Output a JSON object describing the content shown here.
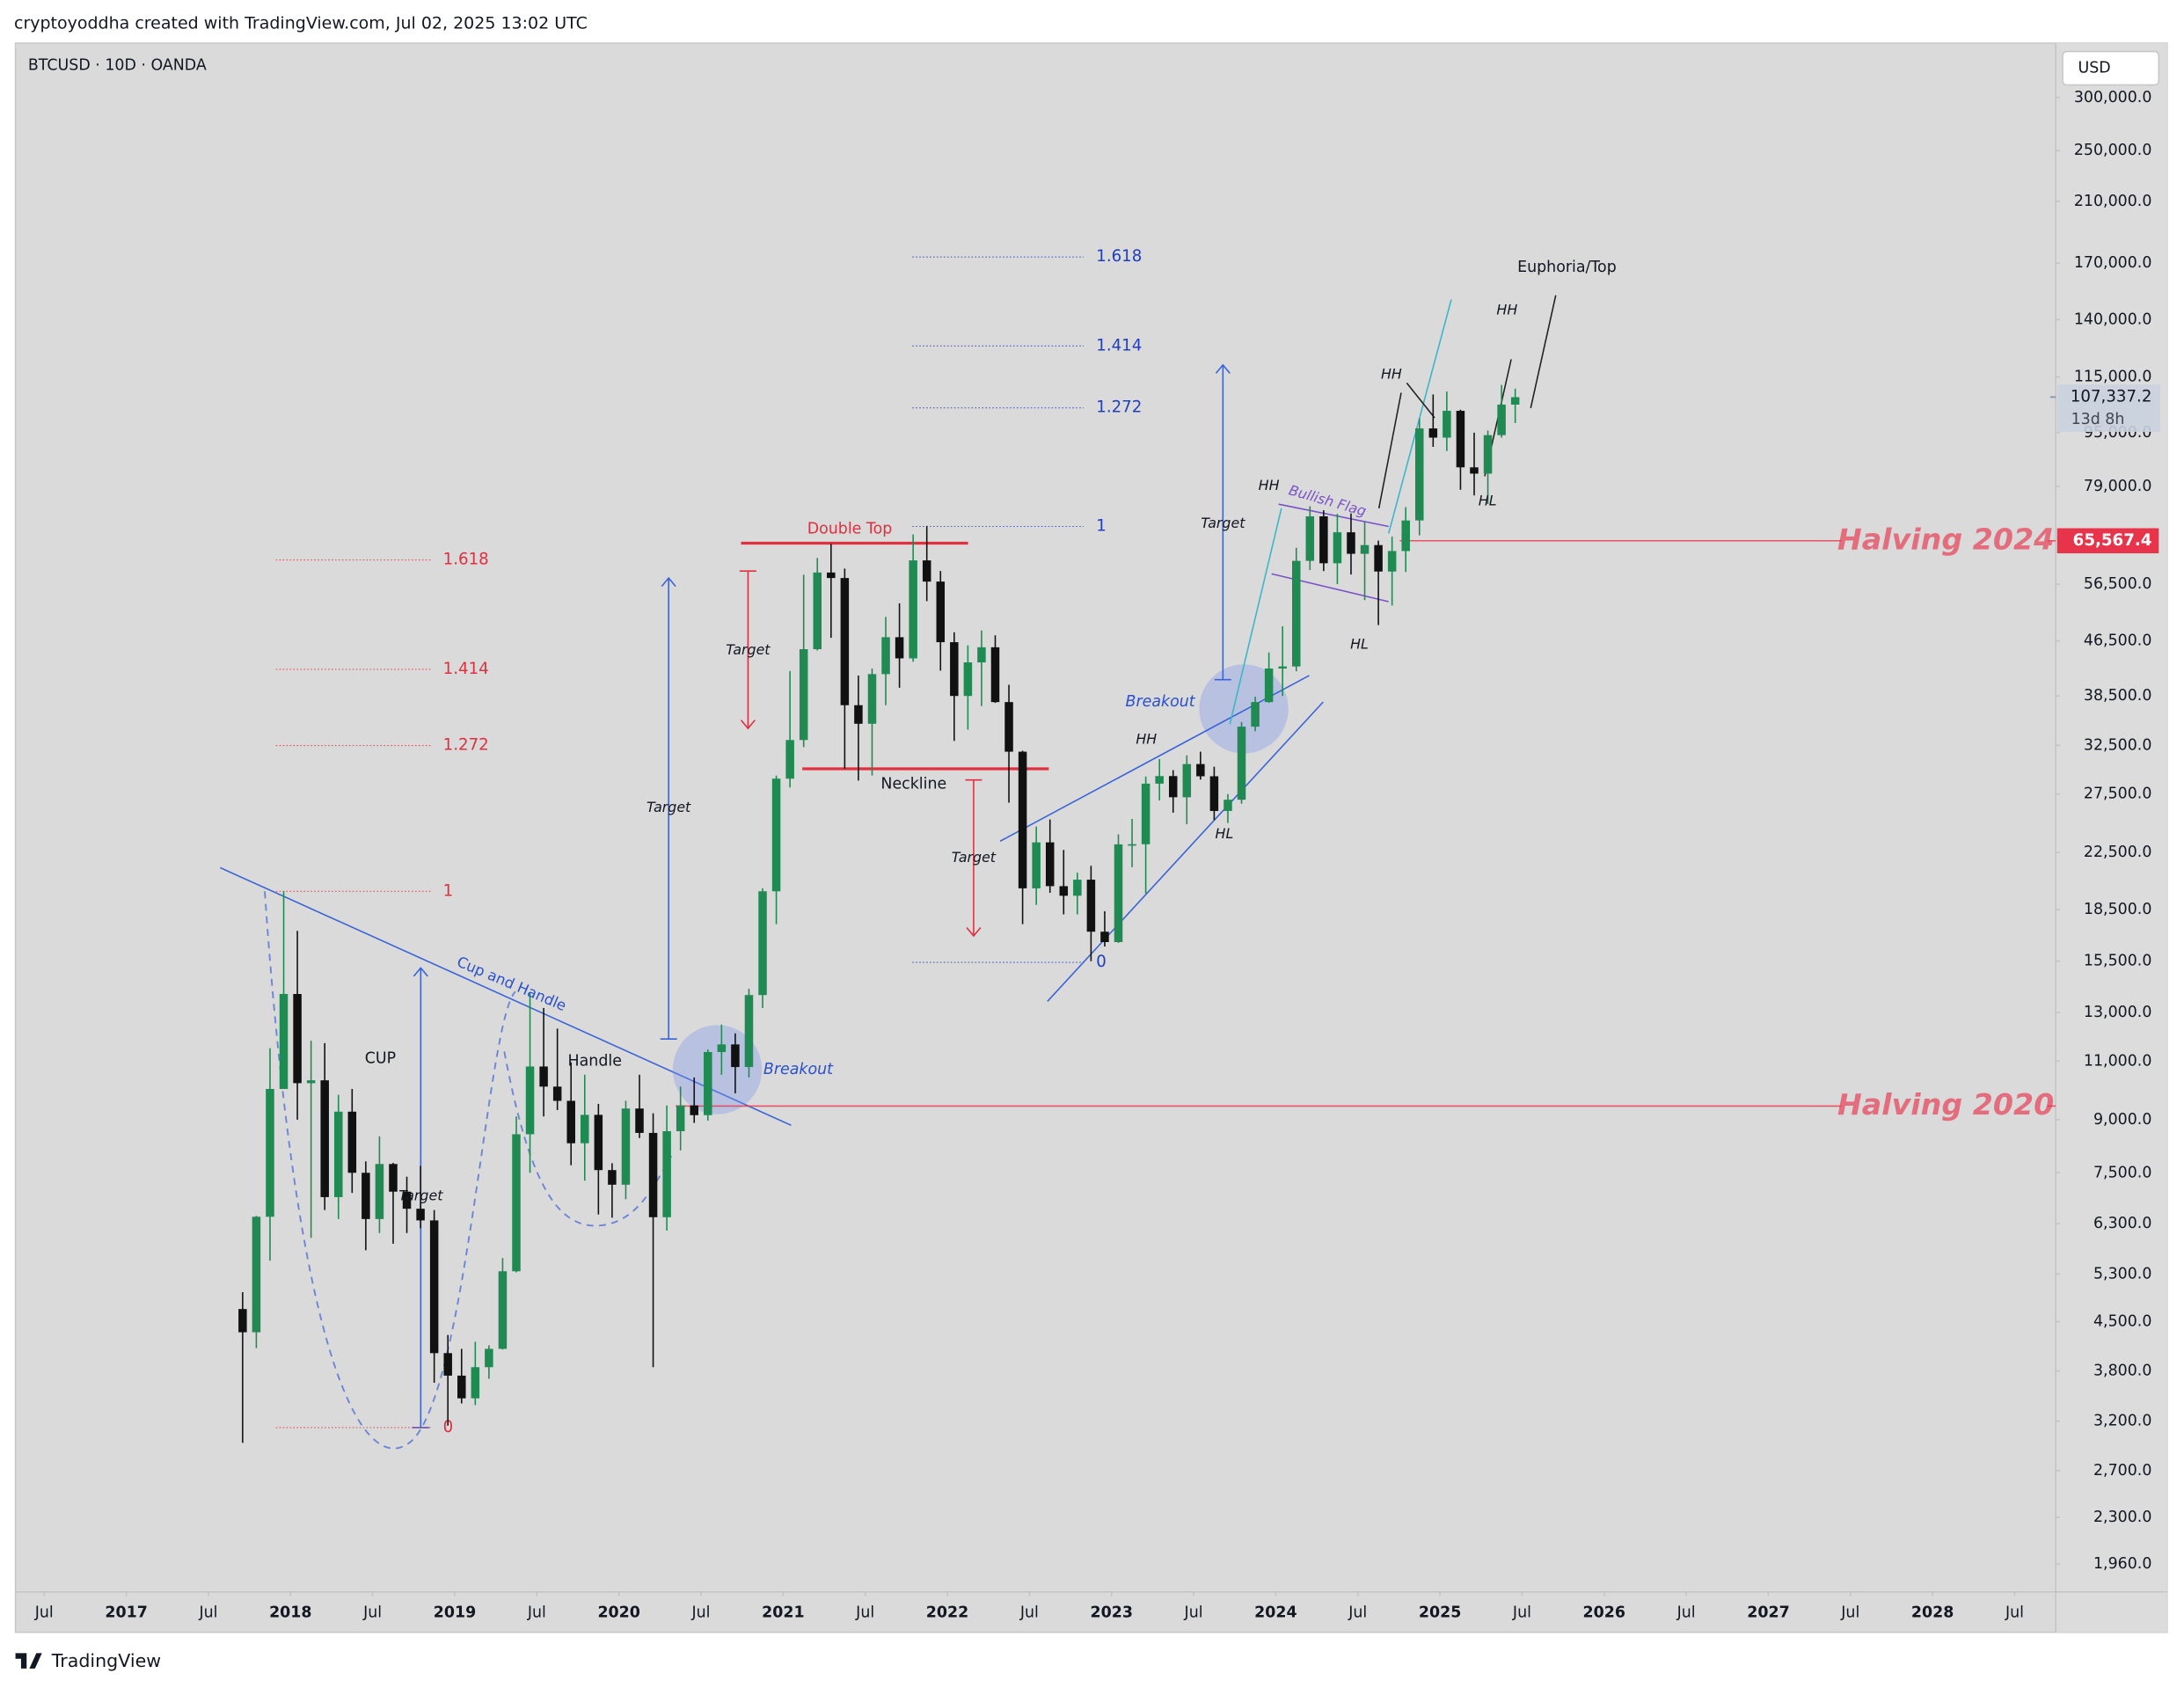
{
  "header": {
    "credit": "cryptoyoddha created with TradingView.com, Jul 02, 2025 13:02 UTC",
    "footer": "TradingView"
  },
  "chart_data": {
    "type": "candlestick",
    "title": "BTCUSD · 10D · OANDA",
    "currency": "USD",
    "log_scale": true,
    "grid": false,
    "up_color": "#1f8a52",
    "down_color": "#111111",
    "x": [
      "2017-09",
      "2017-10",
      "2017-11",
      "2017-12",
      "2018-01",
      "2018-02",
      "2018-03",
      "2018-04",
      "2018-05",
      "2018-06",
      "2018-07",
      "2018-08",
      "2018-09",
      "2018-10",
      "2018-11",
      "2018-12",
      "2019-01",
      "2019-02",
      "2019-03",
      "2019-04",
      "2019-05",
      "2019-06",
      "2019-07",
      "2019-08",
      "2019-09",
      "2019-10",
      "2019-11",
      "2019-12",
      "2020-01",
      "2020-02",
      "2020-03",
      "2020-04",
      "2020-05",
      "2020-06",
      "2020-07",
      "2020-08",
      "2020-09",
      "2020-10",
      "2020-11",
      "2020-12",
      "2021-01",
      "2021-02",
      "2021-03",
      "2021-04",
      "2021-05",
      "2021-06",
      "2021-07",
      "2021-08",
      "2021-09",
      "2021-10",
      "2021-11",
      "2021-12",
      "2022-01",
      "2022-02",
      "2022-03",
      "2022-04",
      "2022-05",
      "2022-06",
      "2022-07",
      "2022-08",
      "2022-09",
      "2022-10",
      "2022-11",
      "2022-12",
      "2023-01",
      "2023-02",
      "2023-03",
      "2023-04",
      "2023-05",
      "2023-06",
      "2023-07",
      "2023-08",
      "2023-09",
      "2023-10",
      "2023-11",
      "2023-12",
      "2024-01",
      "2024-02",
      "2024-03",
      "2024-04",
      "2024-05",
      "2024-06",
      "2024-07",
      "2024-08",
      "2024-09",
      "2024-10",
      "2024-11",
      "2024-12",
      "2025-01",
      "2025-02",
      "2025-03",
      "2025-04",
      "2025-05",
      "2025-06"
    ],
    "open": [
      4700,
      4340,
      6450,
      10000,
      13850,
      10200,
      10300,
      6900,
      9250,
      7500,
      6400,
      7730,
      7030,
      6630,
      6370,
      4040,
      3740,
      3460,
      3850,
      4100,
      5350,
      8560,
      10800,
      10080,
      9600,
      8300,
      9150,
      7570,
      7200,
      9350,
      8600,
      6440,
      8650,
      9450,
      9140,
      11350,
      11650,
      10780,
      13800,
      19700,
      28990,
      33100,
      45200,
      58800,
      57700,
      37300,
      35000,
      41500,
      47100,
      43800,
      61300,
      57000,
      46300,
      38500,
      43200,
      45500,
      37700,
      31800,
      19900,
      23300,
      20050,
      19400,
      20500,
      17150,
      16550,
      23140,
      23150,
      28500,
      29250,
      27200,
      30480,
      29230,
      25950,
      26970,
      34650,
      37700,
      42300,
      42600,
      61200,
      71300,
      60700,
      67500,
      62700,
      64600,
      59000,
      63300,
      70300,
      96400,
      93400,
      102400,
      84350,
      82550,
      94200,
      104600
    ],
    "high": [
      4980,
      6470,
      11500,
      19700,
      17200,
      11800,
      11700,
      9800,
      10000,
      7800,
      8500,
      7760,
      7400,
      7680,
      6600,
      4300,
      4100,
      4200,
      4150,
      5600,
      9100,
      13900,
      13200,
      12300,
      10950,
      10500,
      9500,
      7750,
      9600,
      10500,
      9200,
      9450,
      10080,
      10400,
      11450,
      12470,
      12100,
      14100,
      19900,
      29300,
      41950,
      58350,
      61800,
      64900,
      59600,
      41300,
      42300,
      50500,
      52900,
      67000,
      69000,
      59100,
      47900,
      45800,
      48200,
      47400,
      40000,
      31900,
      24600,
      25200,
      22700,
      21000,
      21500,
      18400,
      23950,
      25250,
      29200,
      31000,
      29850,
      31400,
      31800,
      30200,
      27500,
      35200,
      38400,
      44700,
      48900,
      64000,
      73800,
      72800,
      71900,
      72000,
      70000,
      65600,
      66500,
      73600,
      99800,
      108300,
      109400,
      102800,
      95000,
      95700,
      111900,
      110500
    ],
    "low": [
      2970,
      4110,
      5550,
      10900,
      9000,
      6000,
      6600,
      6400,
      7000,
      5750,
      6100,
      5880,
      6100,
      6200,
      3650,
      3150,
      3400,
      3380,
      3700,
      4090,
      5330,
      7500,
      9100,
      9300,
      7700,
      7300,
      6500,
      6430,
      6850,
      8450,
      3850,
      6150,
      8100,
      8900,
      8970,
      10500,
      9850,
      10400,
      13200,
      17600,
      28130,
      32300,
      45000,
      47000,
      30000,
      28800,
      29300,
      37300,
      39600,
      43300,
      53300,
      42000,
      33000,
      34300,
      37200,
      37600,
      26700,
      17600,
      18800,
      19600,
      18200,
      18200,
      15500,
      16300,
      16500,
      21400,
      19550,
      26900,
      25800,
      24800,
      28900,
      25150,
      24900,
      26600,
      34100,
      37600,
      38500,
      41900,
      59300,
      59100,
      56500,
      58400,
      53500,
      49100,
      52500,
      58900,
      66800,
      90500,
      89200,
      78100,
      76600,
      74400,
      93400,
      98200
    ],
    "close": [
      4340,
      6450,
      10000,
      13850,
      10200,
      10300,
      6900,
      9250,
      7500,
      6400,
      7730,
      7030,
      6630,
      6370,
      4040,
      3740,
      3460,
      3850,
      4100,
      5350,
      8560,
      10800,
      10080,
      9600,
      8300,
      9150,
      7570,
      7200,
      9350,
      8600,
      6440,
      8650,
      9450,
      9140,
      11350,
      11650,
      10780,
      13800,
      19700,
      28990,
      33100,
      45200,
      58800,
      57700,
      37300,
      35000,
      41500,
      47100,
      43800,
      61300,
      57000,
      46300,
      38500,
      43200,
      45500,
      37700,
      31800,
      19900,
      23300,
      20050,
      19400,
      20500,
      17150,
      16550,
      23140,
      23150,
      28500,
      29250,
      27200,
      30480,
      29230,
      25950,
      26970,
      34650,
      37700,
      42300,
      42600,
      61200,
      71300,
      60700,
      67500,
      62700,
      64600,
      59000,
      63300,
      70300,
      96400,
      93400,
      102400,
      84350,
      82550,
      94200,
      104600,
      107300
    ],
    "xlim": [
      "2016-05",
      "2028-10"
    ],
    "xticks": [
      {
        "value": "2016-07",
        "label": "Jul"
      },
      {
        "value": "2017-01",
        "label": "2017"
      },
      {
        "value": "2017-07",
        "label": "Jul"
      },
      {
        "value": "2018-01",
        "label": "2018"
      },
      {
        "value": "2018-07",
        "label": "Jul"
      },
      {
        "value": "2019-01",
        "label": "2019"
      },
      {
        "value": "2019-07",
        "label": "Jul"
      },
      {
        "value": "2020-01",
        "label": "2020"
      },
      {
        "value": "2020-07",
        "label": "Jul"
      },
      {
        "value": "2021-01",
        "label": "2021"
      },
      {
        "value": "2021-07",
        "label": "Jul"
      },
      {
        "value": "2022-01",
        "label": "2022"
      },
      {
        "value": "2022-07",
        "label": "Jul"
      },
      {
        "value": "2023-01",
        "label": "2023"
      },
      {
        "value": "2023-07",
        "label": "Jul"
      },
      {
        "value": "2024-01",
        "label": "2024"
      },
      {
        "value": "2024-07",
        "label": "Jul"
      },
      {
        "value": "2025-01",
        "label": "2025"
      },
      {
        "value": "2025-07",
        "label": "Jul"
      },
      {
        "value": "2026-01",
        "label": "2026"
      },
      {
        "value": "2026-07",
        "label": "Jul"
      },
      {
        "value": "2027-01",
        "label": "2027"
      },
      {
        "value": "2027-07",
        "label": "Jul"
      },
      {
        "value": "2028-01",
        "label": "2028"
      },
      {
        "value": "2028-07",
        "label": "Jul"
      }
    ],
    "ylim": [
      1781,
      359700
    ],
    "yticks": [
      {
        "value": 300000,
        "label": "300,000.0"
      },
      {
        "value": 250000,
        "label": "250,000.0"
      },
      {
        "value": 210000,
        "label": "210,000.0"
      },
      {
        "value": 170000,
        "label": "170,000.0"
      },
      {
        "value": 140000,
        "label": "140,000.0"
      },
      {
        "value": 115000,
        "label": "115,000.0"
      },
      {
        "value": 95000,
        "label": "95,000.0"
      },
      {
        "value": 79000,
        "label": "79,000.0"
      },
      {
        "value": 56500,
        "label": "56,500.0"
      },
      {
        "value": 46500,
        "label": "46,500.0"
      },
      {
        "value": 38500,
        "label": "38,500.0"
      },
      {
        "value": 32500,
        "label": "32,500.0"
      },
      {
        "value": 27500,
        "label": "27,500.0"
      },
      {
        "value": 22500,
        "label": "22,500.0"
      },
      {
        "value": 18500,
        "label": "18,500.0"
      },
      {
        "value": 15500,
        "label": "15,500.0"
      },
      {
        "value": 13000,
        "label": "13,000.0"
      },
      {
        "value": 11000,
        "label": "11,000.0"
      },
      {
        "value": 9000,
        "label": "9,000.0"
      },
      {
        "value": 7500,
        "label": "7,500.0"
      },
      {
        "value": 6300,
        "label": "6,300.0"
      },
      {
        "value": 5300,
        "label": "5,300.0"
      },
      {
        "value": 4500,
        "label": "4,500.0"
      },
      {
        "value": 3800,
        "label": "3,800.0"
      },
      {
        "value": 3200,
        "label": "3,200.0"
      },
      {
        "value": 2700,
        "label": "2,700.0"
      },
      {
        "value": 2300,
        "label": "2,300.0"
      },
      {
        "value": 1960,
        "label": "1,960.0"
      }
    ],
    "last_price": {
      "value": 107337.2,
      "label": "107,337.2",
      "countdown": "13d 8h"
    },
    "halving_lines": [
      {
        "name": "Halving 2024",
        "value": 65567.4,
        "value_label": "65,567.4",
        "color": "#e8344a"
      },
      {
        "name": "Halving 2020",
        "value": 9430,
        "color": "#e8344a"
      }
    ],
    "fibs": [
      {
        "color": "#e0303f",
        "levels": [
          1.618,
          1.414,
          1.272,
          1,
          0
        ]
      },
      {
        "color": "#1f3fbf",
        "levels": [
          1.618,
          1.414,
          1.272,
          1,
          0
        ]
      }
    ],
    "annotations": [
      "Double Top",
      "Neckline",
      "Target",
      "Target",
      "Target",
      "Target",
      "Target",
      "CUP",
      "Handle",
      "Cup and Handle",
      "Breakout",
      "Breakout",
      "Bullish Flag",
      "HH",
      "HH",
      "HH",
      "HH",
      "HL",
      "HL",
      "HL",
      "Euphoria/Top"
    ]
  }
}
